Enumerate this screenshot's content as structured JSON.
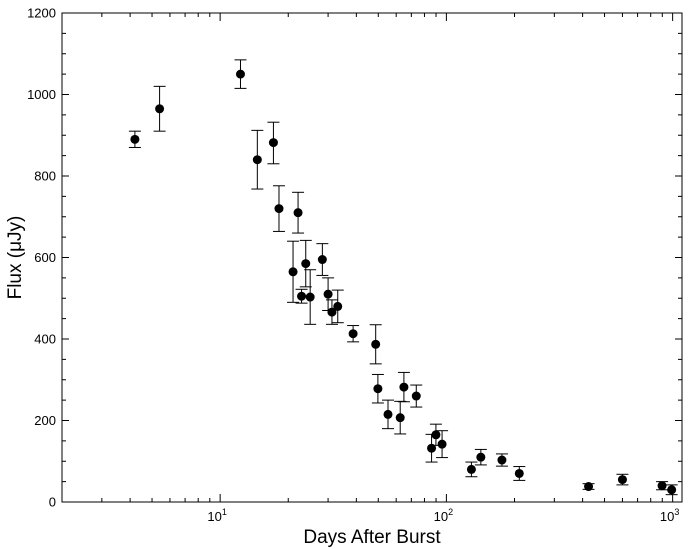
{
  "chart_data": {
    "type": "scatter",
    "title": "",
    "xlabel": "Days After Burst",
    "ylabel": "Flux  (μJy)",
    "xscale": "log",
    "xlim": [
      2,
      1100
    ],
    "ylim": [
      0,
      1200
    ],
    "x_tick_labels": [
      {
        "value": 10,
        "base": "10",
        "exp": "1"
      },
      {
        "value": 100,
        "base": "10",
        "exp": "2"
      },
      {
        "value": 1000,
        "base": "10",
        "exp": "3"
      }
    ],
    "y_ticks": [
      0,
      200,
      400,
      600,
      800,
      1000,
      1200
    ],
    "marker": "filled-circle",
    "error_bars": true,
    "grid": false,
    "points": [
      {
        "x": 4.2,
        "y": 890,
        "lo": 870,
        "hi": 910
      },
      {
        "x": 5.4,
        "y": 965,
        "lo": 910,
        "hi": 1020
      },
      {
        "x": 12.3,
        "y": 1050,
        "lo": 1015,
        "hi": 1085
      },
      {
        "x": 14.6,
        "y": 840,
        "lo": 768,
        "hi": 912
      },
      {
        "x": 17.2,
        "y": 882,
        "lo": 830,
        "hi": 932
      },
      {
        "x": 18.2,
        "y": 720,
        "lo": 664,
        "hi": 776
      },
      {
        "x": 21.0,
        "y": 565,
        "lo": 490,
        "hi": 640
      },
      {
        "x": 22.1,
        "y": 710,
        "lo": 660,
        "hi": 760
      },
      {
        "x": 22.9,
        "y": 505,
        "lo": 488,
        "hi": 522
      },
      {
        "x": 23.9,
        "y": 585,
        "lo": 528,
        "hi": 642
      },
      {
        "x": 25.0,
        "y": 503,
        "lo": 436,
        "hi": 570
      },
      {
        "x": 28.3,
        "y": 595,
        "lo": 556,
        "hi": 634
      },
      {
        "x": 30.0,
        "y": 510,
        "lo": 470,
        "hi": 550
      },
      {
        "x": 31.2,
        "y": 466,
        "lo": 436,
        "hi": 496
      },
      {
        "x": 33.1,
        "y": 480,
        "lo": 440,
        "hi": 520
      },
      {
        "x": 38.7,
        "y": 413,
        "lo": 393,
        "hi": 433
      },
      {
        "x": 48.7,
        "y": 387,
        "lo": 339,
        "hi": 435
      },
      {
        "x": 49.8,
        "y": 278,
        "lo": 243,
        "hi": 313
      },
      {
        "x": 55.2,
        "y": 215,
        "lo": 180,
        "hi": 250
      },
      {
        "x": 62.5,
        "y": 207,
        "lo": 167,
        "hi": 247
      },
      {
        "x": 64.9,
        "y": 282,
        "lo": 246,
        "hi": 318
      },
      {
        "x": 73.6,
        "y": 260,
        "lo": 233,
        "hi": 287
      },
      {
        "x": 86.0,
        "y": 132,
        "lo": 98,
        "hi": 166
      },
      {
        "x": 89.9,
        "y": 165,
        "lo": 139,
        "hi": 191
      },
      {
        "x": 95.7,
        "y": 142,
        "lo": 109,
        "hi": 175
      },
      {
        "x": 129,
        "y": 80,
        "lo": 62,
        "hi": 98
      },
      {
        "x": 142,
        "y": 110,
        "lo": 91,
        "hi": 129
      },
      {
        "x": 176,
        "y": 103,
        "lo": 88,
        "hi": 118
      },
      {
        "x": 210,
        "y": 70,
        "lo": 53,
        "hi": 87
      },
      {
        "x": 425,
        "y": 38,
        "lo": 31,
        "hi": 45
      },
      {
        "x": 600,
        "y": 55,
        "lo": 42,
        "hi": 68
      },
      {
        "x": 898,
        "y": 40,
        "lo": 30,
        "hi": 50
      },
      {
        "x": 990,
        "y": 30,
        "lo": 18,
        "hi": 42
      }
    ]
  }
}
